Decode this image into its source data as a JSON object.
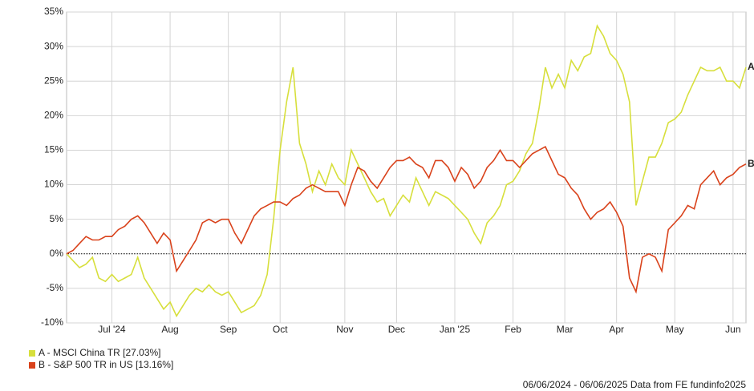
{
  "chart_data": {
    "type": "line",
    "categories": [
      null,
      null,
      null,
      null,
      null,
      null,
      null,
      "Jul '24",
      null,
      null,
      null,
      null,
      null,
      null,
      null,
      null,
      "Aug",
      null,
      null,
      null,
      null,
      null,
      null,
      null,
      null,
      "Sep",
      null,
      null,
      null,
      null,
      null,
      null,
      null,
      "Oct",
      null,
      null,
      null,
      null,
      null,
      null,
      null,
      null,
      null,
      "Nov",
      null,
      null,
      null,
      null,
      null,
      null,
      null,
      "Dec",
      null,
      null,
      null,
      null,
      null,
      null,
      null,
      null,
      "Jan '25",
      null,
      null,
      null,
      null,
      null,
      null,
      null,
      null,
      "Feb",
      null,
      null,
      null,
      null,
      null,
      null,
      null,
      "Mar",
      null,
      null,
      null,
      null,
      null,
      null,
      null,
      "Apr",
      null,
      null,
      null,
      null,
      null,
      null,
      null,
      null,
      "May",
      null,
      null,
      null,
      null,
      null,
      null,
      null,
      null,
      "Jun",
      null,
      null
    ],
    "series": [
      {
        "name": "A - MSCI China TR [27.03%]",
        "label": "A",
        "color": "#d7df3c",
        "values": [
          0,
          -1,
          -2,
          -1.5,
          -0.5,
          -3.5,
          -4,
          -3,
          -4,
          -3.5,
          -3,
          -0.5,
          -3.5,
          -5,
          -6.5,
          -8,
          -7,
          -9,
          -7.5,
          -6,
          -5,
          -5.5,
          -4.5,
          -5.5,
          -6,
          -5.5,
          -7,
          -8.5,
          -8,
          -7.5,
          -6,
          -3,
          5,
          15,
          22,
          27,
          16,
          13,
          9,
          12,
          10,
          13,
          11,
          10,
          15,
          13,
          11,
          9,
          7.5,
          8,
          5.5,
          7,
          8.5,
          7.5,
          11,
          9,
          7,
          9,
          8.5,
          8,
          7,
          6,
          5,
          3,
          1.5,
          4.5,
          5.5,
          7,
          10,
          10.5,
          12,
          14.5,
          16,
          21,
          27,
          24,
          26,
          24,
          28,
          26.5,
          28.5,
          29,
          33,
          31.5,
          29,
          28,
          26,
          22,
          7,
          10.5,
          14,
          14,
          16,
          19,
          19.5,
          20.5,
          23,
          25,
          27,
          26.5,
          26.5,
          27,
          25,
          25,
          24,
          27
        ]
      },
      {
        "name": "B - S&P 500 TR in US [13.16%]",
        "label": "B",
        "color": "#d9421b",
        "values": [
          0,
          0.5,
          1.5,
          2.5,
          2,
          2,
          2.5,
          2.5,
          3.5,
          4,
          5,
          5.5,
          4.5,
          3,
          1.5,
          3,
          2,
          -2.5,
          -1,
          0.5,
          2,
          4.5,
          5,
          4.5,
          5,
          5,
          3,
          1.5,
          3.5,
          5.5,
          6.5,
          7,
          7.5,
          7.5,
          7,
          8,
          8.5,
          9.5,
          10,
          9.5,
          9,
          9,
          9,
          7,
          10,
          12.5,
          12,
          10.5,
          9.5,
          11,
          12.5,
          13.5,
          13.5,
          14,
          13,
          12.5,
          11,
          13.5,
          13.5,
          12.5,
          10.5,
          12.5,
          11.5,
          9.5,
          10.5,
          12.5,
          13.5,
          15,
          13.5,
          13.5,
          12.5,
          13.5,
          14.5,
          15,
          15.5,
          13.5,
          11.5,
          11,
          9.5,
          8.5,
          6.5,
          5,
          6,
          6.5,
          7.5,
          6,
          4,
          -3.5,
          -5.5,
          -0.5,
          0,
          -0.5,
          -2.5,
          3.5,
          4.5,
          5.5,
          7,
          6.5,
          10,
          11,
          12,
          10,
          11,
          11.5,
          12.5,
          13
        ]
      }
    ],
    "ylim": [
      -10,
      35
    ],
    "yticks": [
      {
        "value": -10,
        "label": "-10%"
      },
      {
        "value": -5,
        "label": "-5%"
      },
      {
        "value": 0,
        "label": "0%"
      },
      {
        "value": 5,
        "label": "5%"
      },
      {
        "value": 10,
        "label": "10%"
      },
      {
        "value": 15,
        "label": "15%"
      },
      {
        "value": 20,
        "label": "20%"
      },
      {
        "value": 25,
        "label": "25%"
      },
      {
        "value": 30,
        "label": "30%"
      },
      {
        "value": 35,
        "label": "35%"
      }
    ],
    "grid": true,
    "footer": "06/06/2024 - 06/06/2025 Data from FE fundinfo2025"
  }
}
